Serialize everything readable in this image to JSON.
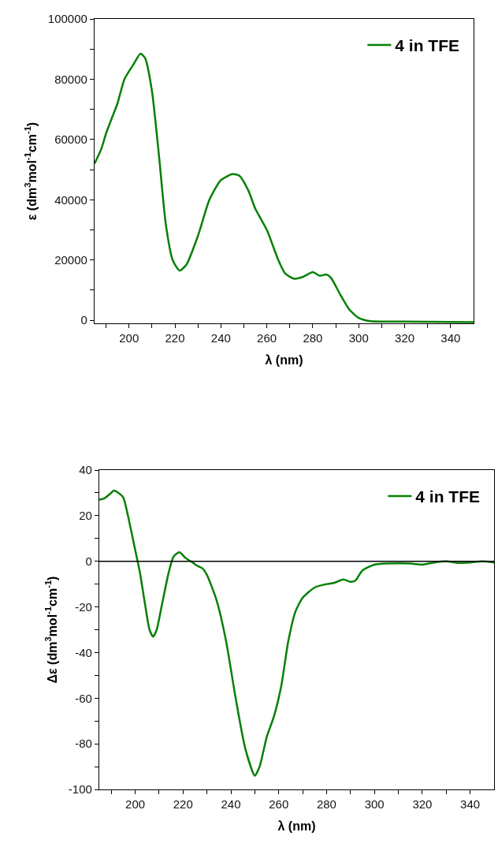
{
  "chart_data": [
    {
      "type": "line",
      "xlabel": "λ (nm)",
      "ylabel": "ε (dm$^{3}$mol$^{-1}$cm$^{-1}$)",
      "xlim": [
        185,
        350
      ],
      "ylim": [
        -1000,
        100000
      ],
      "xticks": [
        {
          "value": 190,
          "label": null
        },
        200,
        {
          "value": 210,
          "label": null
        },
        220,
        {
          "value": 230,
          "label": null
        },
        240,
        {
          "value": 250,
          "label": null
        },
        260,
        {
          "value": 270,
          "label": null
        },
        280,
        {
          "value": 290,
          "label": null
        },
        300,
        {
          "value": 310,
          "label": null
        },
        320,
        {
          "value": 330,
          "label": null
        },
        340
      ],
      "yticks": [
        0,
        {
          "value": 10000,
          "label": null
        },
        20000,
        {
          "value": 30000,
          "label": null
        },
        40000,
        {
          "value": 50000,
          "label": null
        },
        60000,
        {
          "value": 70000,
          "label": null
        },
        80000,
        {
          "value": 90000,
          "label": null
        },
        100000
      ],
      "legend": "top right",
      "x": [
        185,
        188,
        190,
        193,
        195,
        198,
        202,
        205,
        207,
        210,
        213,
        216,
        219,
        222,
        225,
        230,
        235,
        240,
        245,
        248,
        252,
        255,
        260,
        265,
        268,
        272,
        276,
        280,
        283,
        286,
        288,
        292,
        296,
        300,
        305,
        320,
        350
      ],
      "series": [
        {
          "name": "4 in TFE",
          "color": "#058005",
          "values": [
            52000,
            57000,
            62000,
            68000,
            72000,
            80000,
            85000,
            88500,
            87000,
            76000,
            55000,
            32000,
            20000,
            16500,
            18500,
            28000,
            40000,
            46500,
            48500,
            48000,
            43000,
            37000,
            30000,
            20000,
            15500,
            13800,
            14500,
            16000,
            14800,
            15200,
            14000,
            8500,
            3500,
            800,
            -300,
            -400,
            -600
          ]
        }
      ]
    },
    {
      "type": "line",
      "xlabel": "λ (nm)",
      "ylabel": "Δε (dm$^{3}$mol$^{-1}$cm$^{-1}$)",
      "xlim": [
        185,
        350
      ],
      "ylim": [
        -100,
        40
      ],
      "xticks": [
        {
          "value": 190,
          "label": null
        },
        200,
        {
          "value": 210,
          "label": null
        },
        220,
        {
          "value": 230,
          "label": null
        },
        240,
        {
          "value": 250,
          "label": null
        },
        260,
        {
          "value": 270,
          "label": null
        },
        280,
        {
          "value": 290,
          "label": null
        },
        300,
        {
          "value": 310,
          "label": null
        },
        320,
        {
          "value": 330,
          "label": null
        },
        340
      ],
      "yticks": [
        -100,
        {
          "value": -90,
          "label": null
        },
        -80,
        {
          "value": -70,
          "label": null
        },
        -60,
        {
          "value": -50,
          "label": null
        },
        -40,
        {
          "value": -30,
          "label": null
        },
        -20,
        {
          "value": -10,
          "label": null
        },
        0,
        {
          "value": 10,
          "label": null
        },
        20,
        {
          "value": 30,
          "label": null
        },
        40
      ],
      "legend": "top right",
      "ref_lines": [
        {
          "axis": "y",
          "value": 0,
          "color": "#000000"
        }
      ],
      "x": [
        185,
        187,
        190,
        191,
        193,
        195,
        198,
        200,
        202,
        204,
        206,
        207.5,
        209,
        211,
        214,
        216,
        218.5,
        221,
        224,
        226,
        228,
        230,
        234,
        238,
        242,
        246,
        250,
        252,
        255,
        258,
        261,
        264,
        267,
        270,
        275,
        280,
        283,
        287,
        290,
        292,
        295,
        300,
        305,
        315,
        320,
        325,
        330,
        335,
        340,
        345,
        350
      ],
      "series": [
        {
          "name": "4 in TFE",
          "color": "#058005",
          "values": [
            27,
            27.5,
            30,
            31,
            30,
            28,
            15,
            5,
            -5,
            -18,
            -30,
            -33,
            -30,
            -20,
            -5,
            2,
            4,
            1.5,
            -0.5,
            -2,
            -3,
            -6,
            -17,
            -35,
            -60,
            -82,
            -94,
            -90,
            -77,
            -68,
            -55,
            -35,
            -22,
            -16,
            -11.5,
            -10,
            -9.5,
            -8,
            -9,
            -8.5,
            -4,
            -1.5,
            -1,
            -1,
            -1.5,
            -0.5,
            0,
            -0.7,
            -0.5,
            0,
            -0.5
          ]
        }
      ]
    }
  ]
}
